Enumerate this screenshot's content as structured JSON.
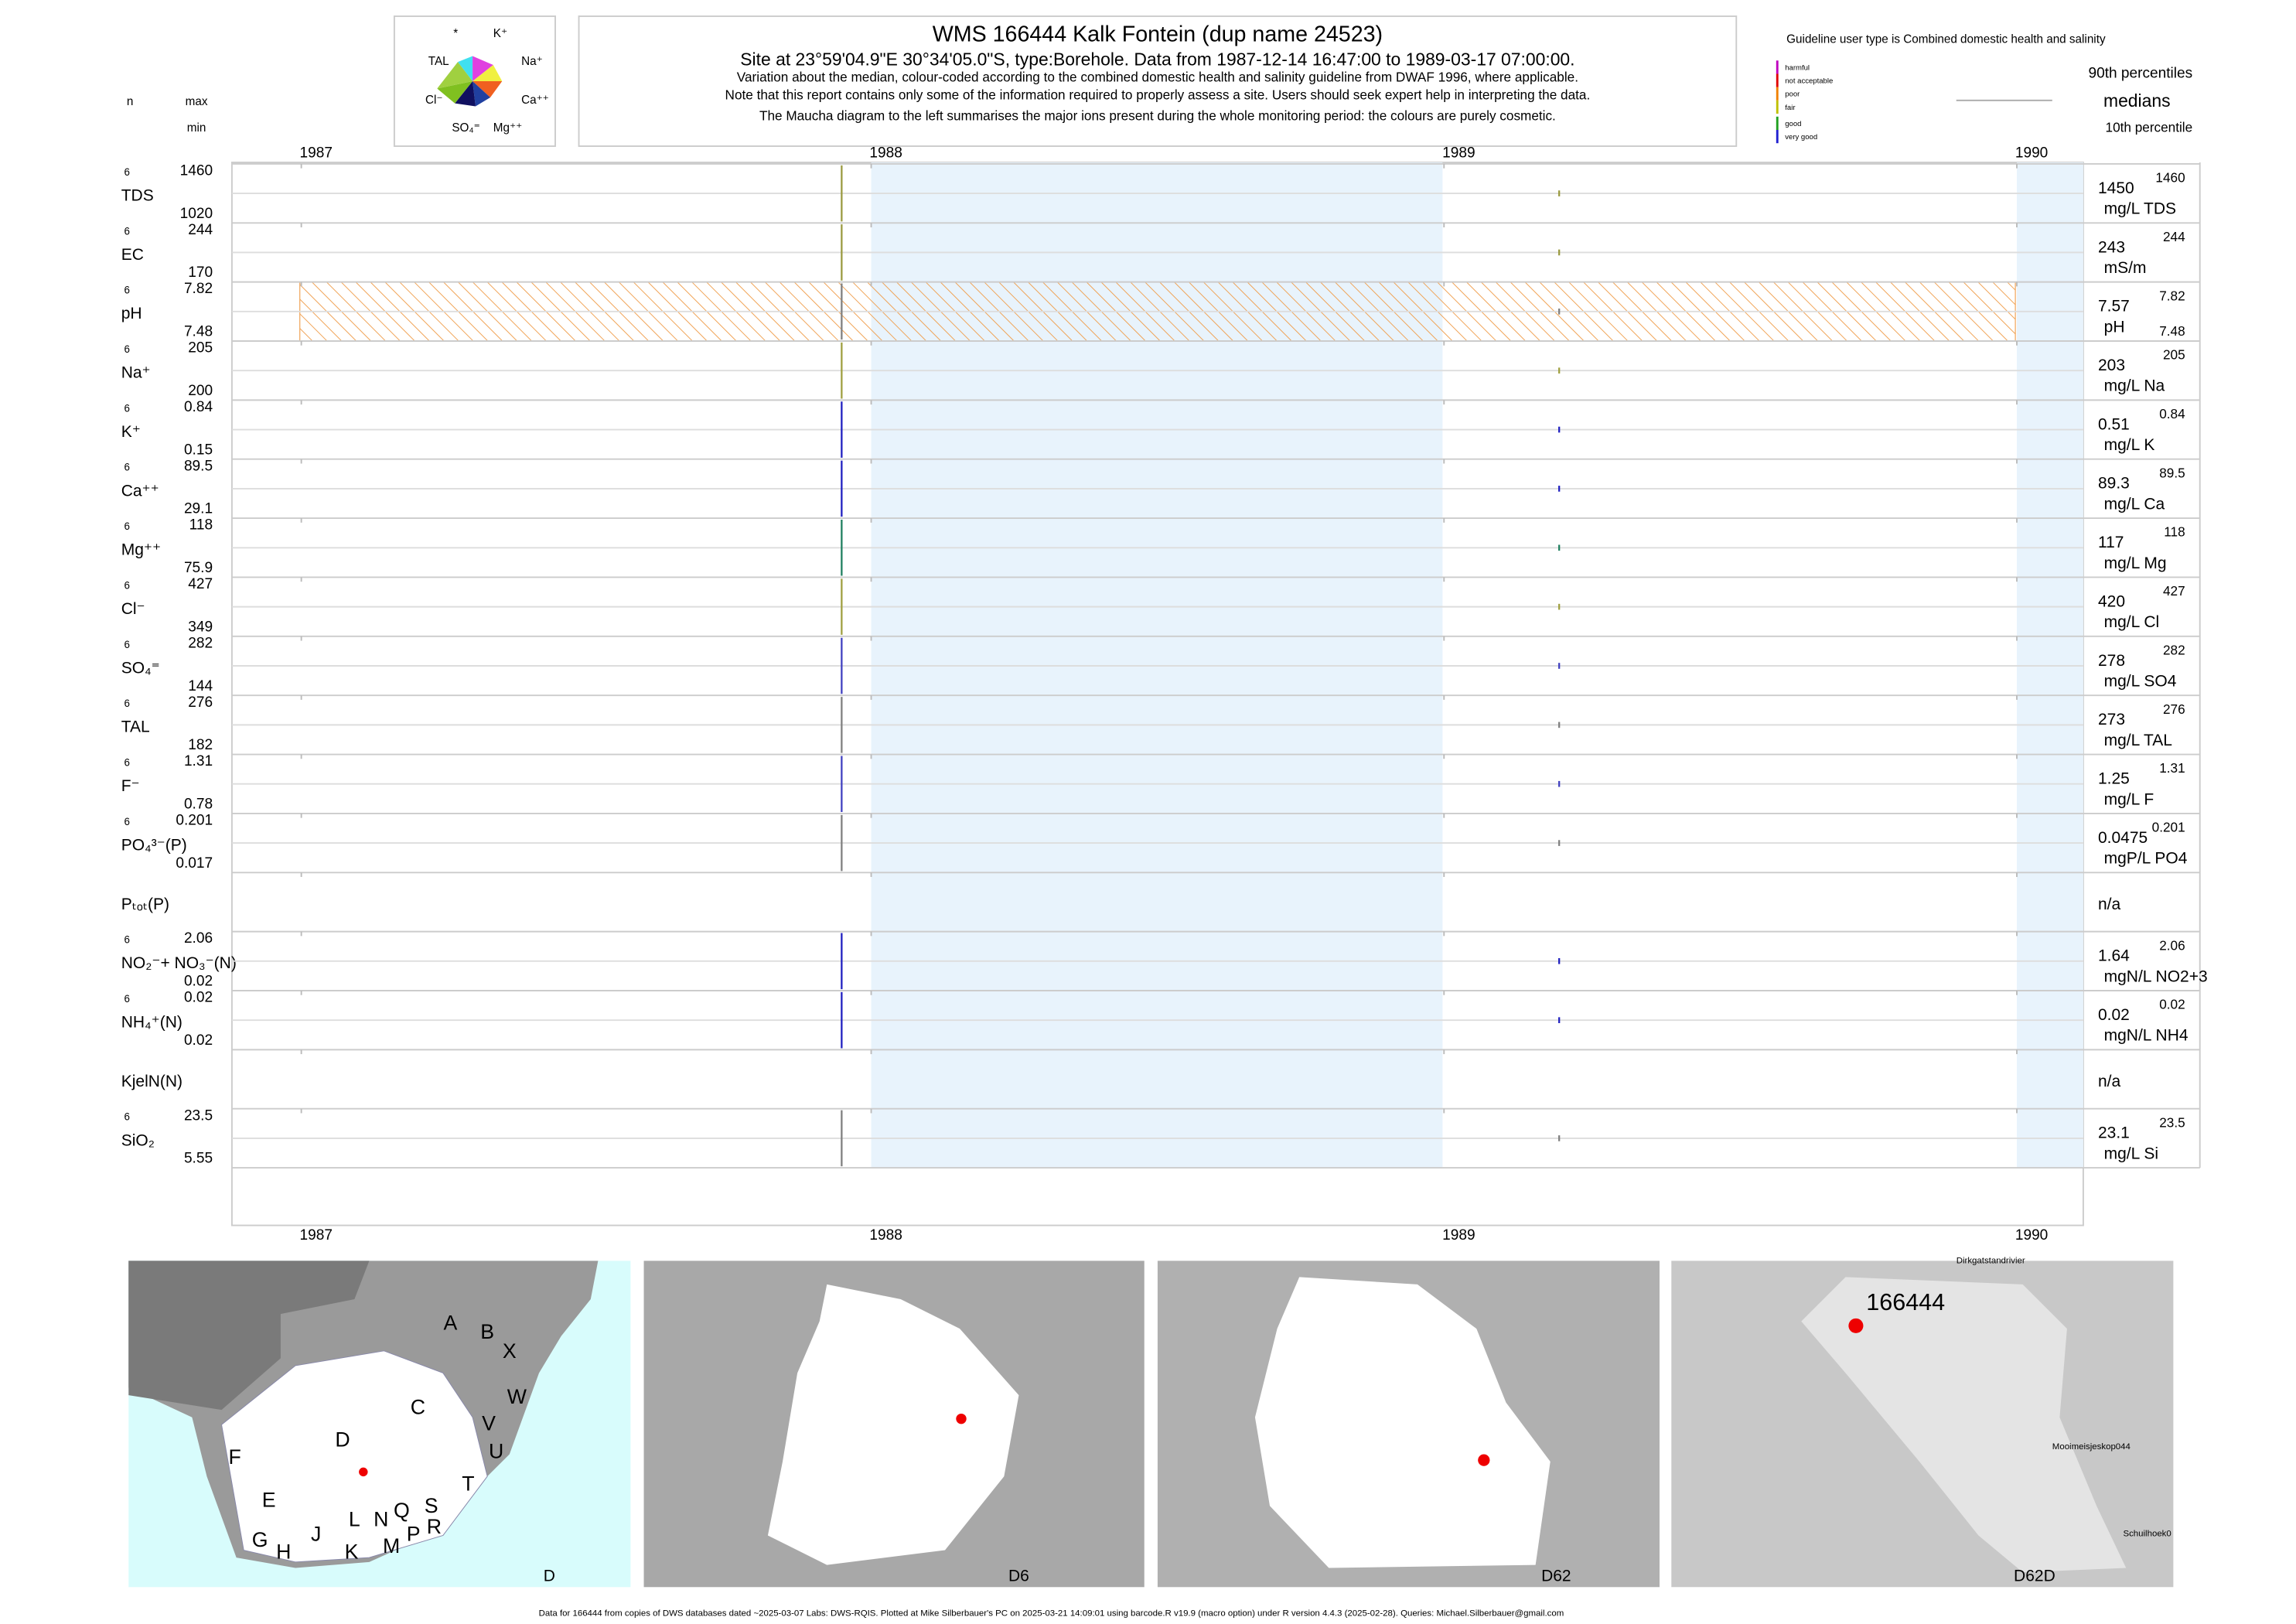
{
  "header": {
    "title": "WMS 166444  Kalk Fontein (dup name 24523)",
    "site": "Site at 23°59'04.9\"E 30°34'05.0\"S, type:Borehole.  Data from 1987-12-14 16:47:00 to 1989-03-17 07:00:00.",
    "notes": [
      "Variation about the median,  colour-coded according to the combined domestic health and salinity guideline from DWAF 1996, where applicable.",
      "Note that this report contains only some of the information required to properly assess a site. Users should seek expert help in interpreting the data.",
      "The Maucha diagram to the left summarises the major ions present during the whole monitoring period: the colours are purely cosmetic."
    ]
  },
  "maucha": {
    "labels": [
      "*",
      "K⁺",
      "TAL",
      "Na⁺",
      "Cl⁻",
      "Ca⁺⁺",
      "SO₄⁼",
      "Mg⁺⁺"
    ]
  },
  "columns": {
    "n": "n",
    "max": "max",
    "min": "min"
  },
  "guideline": {
    "title": "Guideline user type is Combined domestic health and salinity",
    "classes": [
      "harmful",
      "not acceptable",
      "poor",
      "fair",
      "good",
      "very good"
    ],
    "percentiles": [
      "90th percentiles",
      "medians",
      "10th percentile"
    ]
  },
  "years": [
    "1987",
    "1988",
    "1989",
    "1990"
  ],
  "rows": [
    {
      "label": "TDS",
      "n": "6",
      "max": "1460",
      "min": "1020",
      "median": "1450",
      "unit": "mg/L TDS",
      "right_max": "1460"
    },
    {
      "label": "EC",
      "n": "6",
      "max": "244",
      "min": "170",
      "median": "243",
      "unit": "mS/m",
      "right_max": "244"
    },
    {
      "label": "pH",
      "n": "6",
      "max": "7.82",
      "min": "7.48",
      "median": "7.57",
      "unit": "pH",
      "right_max": "7.82",
      "right_min": "7.48"
    },
    {
      "label": "Na⁺",
      "n": "6",
      "max": "205",
      "min": "200",
      "median": "203",
      "unit": "mg/L Na",
      "right_max": "205"
    },
    {
      "label": "K⁺",
      "n": "6",
      "max": "0.84",
      "min": "0.15",
      "median": "0.51",
      "unit": "mg/L K",
      "right_max": "0.84"
    },
    {
      "label": "Ca⁺⁺",
      "n": "6",
      "max": "89.5",
      "min": "29.1",
      "median": "89.3",
      "unit": "mg/L Ca",
      "right_max": "89.5"
    },
    {
      "label": "Mg⁺⁺",
      "n": "6",
      "max": "118",
      "min": "75.9",
      "median": "117",
      "unit": "mg/L Mg",
      "right_max": "118"
    },
    {
      "label": "Cl⁻",
      "n": "6",
      "max": "427",
      "min": "349",
      "median": "420",
      "unit": "mg/L Cl",
      "right_max": "427"
    },
    {
      "label": "SO₄⁼",
      "n": "6",
      "max": "282",
      "min": "144",
      "median": "278",
      "unit": "mg/L SO4",
      "right_max": "282"
    },
    {
      "label": "TAL",
      "n": "6",
      "max": "276",
      "min": "182",
      "median": "273",
      "unit": "mg/L TAL",
      "right_max": "276"
    },
    {
      "label": "F⁻",
      "n": "6",
      "max": "1.31",
      "min": "0.78",
      "median": "1.25",
      "unit": "mg/L F",
      "right_max": "1.31"
    },
    {
      "label": "PO₄³⁻(P)",
      "n": "6",
      "max": "0.201",
      "min": "0.017",
      "median": "0.0475",
      "unit": "mgP/L PO4",
      "right_max": "0.201"
    },
    {
      "label": "Pₜₒₜ(P)",
      "median": "n/a"
    },
    {
      "label": "NO₂⁻+ NO₃⁻(N)",
      "n": "6",
      "max": "2.06",
      "min": "0.02",
      "median": "1.64",
      "unit": "mgN/L NO2+3",
      "right_max": "2.06"
    },
    {
      "label": "NH₄⁺(N)",
      "n": "6",
      "max": "0.02",
      "min": "0.02",
      "median": "0.02",
      "unit": "mgN/L NH4",
      "right_max": "0.02"
    },
    {
      "label": "KjelN(N)",
      "median": "n/a"
    },
    {
      "label": "SiO₂",
      "n": "6",
      "max": "23.5",
      "min": "5.55",
      "median": "23.1",
      "unit": "mg/L Si",
      "right_max": "23.5"
    }
  ],
  "maps": {
    "panels": [
      "D",
      "D6",
      "D62",
      "D62D"
    ],
    "regions": [
      "A",
      "B",
      "X",
      "W",
      "C",
      "V",
      "U",
      "D",
      "F",
      "T",
      "E",
      "S",
      "R",
      "Q",
      "N",
      "L",
      "G",
      "H",
      "J",
      "K",
      "M",
      "P"
    ],
    "site": "166444",
    "places": [
      "Dirkgatstandrivier",
      "Mooimeisjeskop044",
      "Schuilhoek0"
    ]
  },
  "footer": "Data for 166444 from copies of DWS databases dated ~2025-03-07 Labs: DWS-RQIS. Plotted at Mike Silberbauer's PC on 2025-03-21 14:09:01 using barcode.R v19.9 (macro option) under R version 4.4.3 (2025-02-28). Queries: Michael.Silberbauer@gmail.com"
}
